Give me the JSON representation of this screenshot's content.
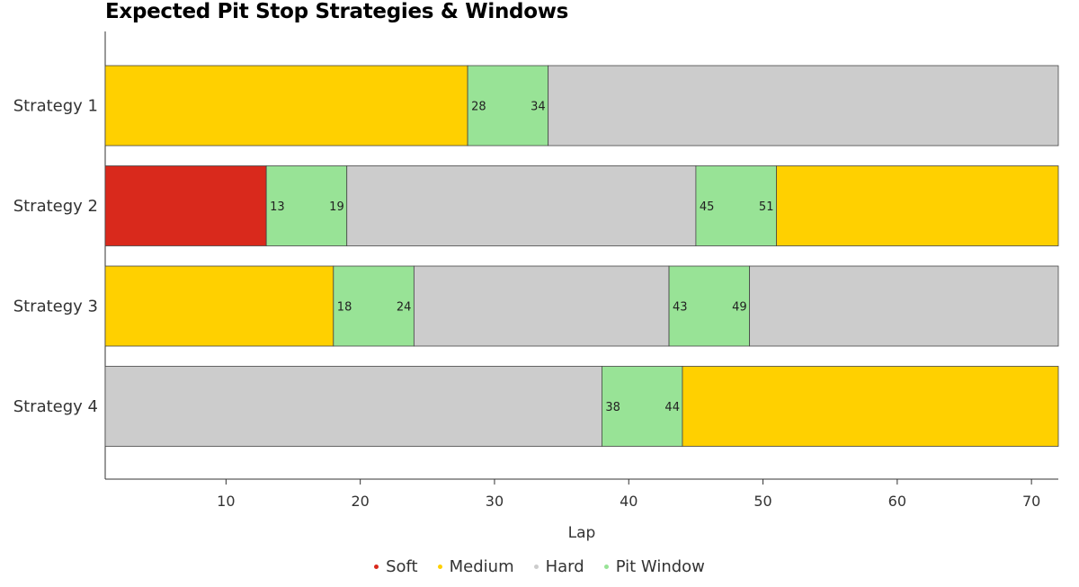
{
  "chart_data": {
    "type": "bar",
    "orientation": "horizontal-stacked",
    "title": "Expected Pit Stop Strategies & Windows",
    "xlabel": "Lap",
    "ylabel": "",
    "xlim": [
      1,
      72
    ],
    "xticks": [
      10,
      20,
      30,
      40,
      50,
      60,
      70
    ],
    "grid": false,
    "legend_position": "bottom",
    "categories": [
      "Strategy 1",
      "Strategy 2",
      "Strategy 3",
      "Strategy 4"
    ],
    "legend": [
      {
        "key": "soft",
        "label": "Soft",
        "color": "#d9291c"
      },
      {
        "key": "medium",
        "label": "Medium",
        "color": "#ffd000"
      },
      {
        "key": "hard",
        "label": "Hard",
        "color": "#cccccc"
      },
      {
        "key": "pit",
        "label": "Pit Window",
        "color": "#98e396"
      }
    ],
    "strategies": [
      {
        "name": "Strategy 1",
        "segments": [
          {
            "compound": "medium",
            "start": 1,
            "end": 28
          },
          {
            "compound": "pit",
            "start": 28,
            "end": 34
          },
          {
            "compound": "hard",
            "start": 34,
            "end": 72
          }
        ]
      },
      {
        "name": "Strategy 2",
        "segments": [
          {
            "compound": "soft",
            "start": 1,
            "end": 13
          },
          {
            "compound": "pit",
            "start": 13,
            "end": 19
          },
          {
            "compound": "hard",
            "start": 19,
            "end": 45
          },
          {
            "compound": "pit",
            "start": 45,
            "end": 51
          },
          {
            "compound": "medium",
            "start": 51,
            "end": 72
          }
        ]
      },
      {
        "name": "Strategy 3",
        "segments": [
          {
            "compound": "medium",
            "start": 1,
            "end": 18
          },
          {
            "compound": "pit",
            "start": 18,
            "end": 24
          },
          {
            "compound": "hard",
            "start": 24,
            "end": 43
          },
          {
            "compound": "pit",
            "start": 43,
            "end": 49
          },
          {
            "compound": "hard",
            "start": 49,
            "end": 72
          }
        ]
      },
      {
        "name": "Strategy 4",
        "segments": [
          {
            "compound": "hard",
            "start": 1,
            "end": 38
          },
          {
            "compound": "pit",
            "start": 38,
            "end": 44
          },
          {
            "compound": "medium",
            "start": 44,
            "end": 72
          }
        ]
      }
    ]
  }
}
